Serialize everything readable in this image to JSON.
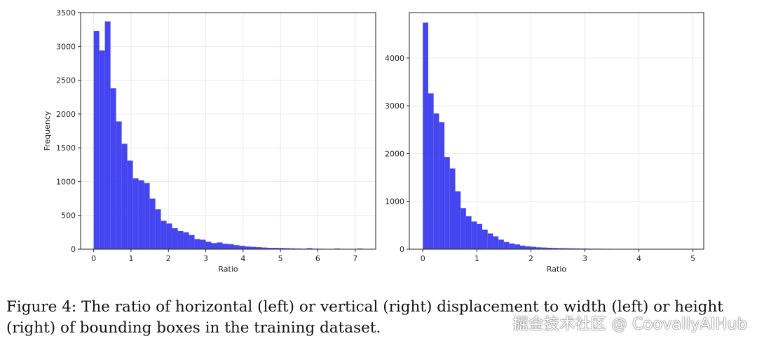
{
  "chart_data": [
    {
      "type": "bar",
      "subtype": "histogram",
      "bin_width": 0.15,
      "bin_start": 0,
      "values": [
        3230,
        2940,
        3370,
        2380,
        1890,
        1560,
        1310,
        1050,
        1020,
        980,
        750,
        590,
        420,
        380,
        310,
        270,
        250,
        210,
        150,
        140,
        110,
        90,
        100,
        80,
        75,
        60,
        50,
        40,
        35,
        30,
        25,
        20,
        20,
        18,
        15,
        12,
        10,
        8,
        15,
        8,
        7,
        5,
        5,
        10,
        5,
        4,
        5,
        10,
        4
      ],
      "xlim": [
        -0.35,
        7.55
      ],
      "ylim": [
        0,
        3500
      ],
      "xticks": [
        "0",
        "1",
        "2",
        "3",
        "4",
        "5",
        "6",
        "7"
      ],
      "yticks": [
        "0",
        "500",
        "1000",
        "1500",
        "2000",
        "2500",
        "3000",
        "3500"
      ],
      "xlabel": "Ratio",
      "ylabel": "Frequency",
      "grid": true,
      "color": "#3c3cf0"
    },
    {
      "type": "bar",
      "subtype": "histogram",
      "bin_width": 0.1,
      "bin_start": 0,
      "values": [
        4740,
        3260,
        2840,
        2660,
        1930,
        1690,
        1210,
        860,
        690,
        580,
        530,
        410,
        330,
        270,
        200,
        150,
        120,
        100,
        75,
        60,
        50,
        40,
        35,
        30,
        25,
        22,
        20,
        18,
        16,
        14,
        12,
        10,
        10,
        8,
        8,
        7,
        6,
        5,
        5,
        5,
        4,
        4,
        3,
        3,
        3,
        2,
        2,
        2,
        2,
        2
      ],
      "xlim": [
        -0.25,
        5.2
      ],
      "ylim": [
        0,
        4950
      ],
      "xticks": [
        "0",
        "1",
        "2",
        "3",
        "4",
        "5"
      ],
      "yticks": [
        "0",
        "1000",
        "2000",
        "3000",
        "4000"
      ],
      "xlabel": "Ratio",
      "ylabel": "",
      "grid": true,
      "color": "#3c3cf0"
    }
  ],
  "caption": {
    "line1": "Figure 4: The ratio of horizontal (left) or vertical (right) displacement to width (left) or height",
    "line2": "(right) of bounding boxes in the training dataset."
  },
  "watermark": "掘金技术社区 @ CoovallyAIHub"
}
